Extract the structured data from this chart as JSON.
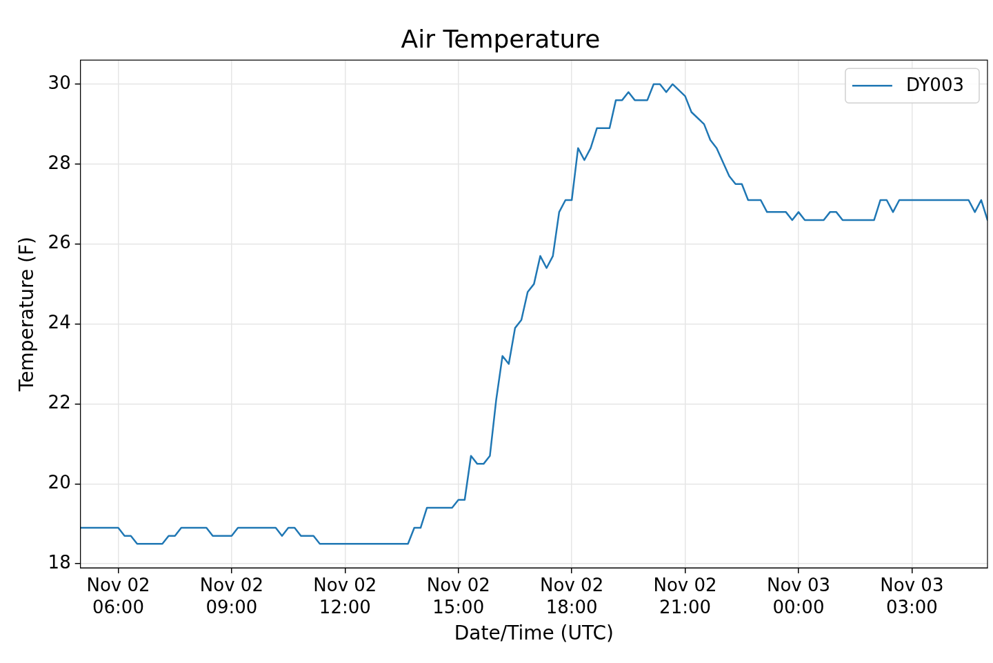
{
  "chart_data": {
    "type": "line",
    "title": "Air Temperature",
    "xlabel": "Date/Time (UTC)",
    "ylabel": "Temperature (F)",
    "xlim": [
      "--11-02T05:00",
      "--11-03T05:00"
    ],
    "ylim": [
      17.9,
      30.6
    ],
    "xticks": [
      {
        "value": "--11-02T06:00",
        "label": "Nov 02\n06:00"
      },
      {
        "value": "--11-02T09:00",
        "label": "Nov 02\n09:00"
      },
      {
        "value": "--11-02T12:00",
        "label": "Nov 02\n12:00"
      },
      {
        "value": "--11-02T15:00",
        "label": "Nov 02\n15:00"
      },
      {
        "value": "--11-02T18:00",
        "label": "Nov 02\n18:00"
      },
      {
        "value": "--11-02T21:00",
        "label": "Nov 02\n21:00"
      },
      {
        "value": "--11-03T00:00",
        "label": "Nov 03\n00:00"
      },
      {
        "value": "--11-03T03:00",
        "label": "Nov 03\n03:00"
      }
    ],
    "yticks": [
      18,
      20,
      22,
      24,
      26,
      28,
      30
    ],
    "grid": true,
    "legend": "top right",
    "marker": "none",
    "line_style": "solid",
    "x": [
      "--11-02T05:00",
      "--11-02T06:00",
      "--11-02T06:10",
      "--11-02T06:20",
      "--11-02T06:30",
      "--11-02T07:10",
      "--11-02T07:20",
      "--11-02T07:30",
      "--11-02T07:40",
      "--11-02T08:20",
      "--11-02T08:30",
      "--11-02T09:00",
      "--11-02T09:10",
      "--11-02T10:10",
      "--11-02T10:20",
      "--11-02T10:30",
      "--11-02T10:40",
      "--11-02T10:50",
      "--11-02T11:10",
      "--11-02T11:20",
      "--11-02T13:40",
      "--11-02T13:50",
      "--11-02T14:00",
      "--11-02T14:10",
      "--11-02T14:50",
      "--11-02T15:00",
      "--11-02T15:10",
      "--11-02T15:20",
      "--11-02T15:30",
      "--11-02T15:40",
      "--11-02T15:50",
      "--11-02T16:00",
      "--11-02T16:10",
      "--11-02T16:20",
      "--11-02T16:30",
      "--11-02T16:40",
      "--11-02T16:50",
      "--11-02T17:00",
      "--11-02T17:10",
      "--11-02T17:20",
      "--11-02T17:30",
      "--11-02T17:40",
      "--11-02T17:50",
      "--11-02T18:00",
      "--11-02T18:10",
      "--11-02T18:20",
      "--11-02T18:30",
      "--11-02T18:40",
      "--11-02T19:00",
      "--11-02T19:10",
      "--11-02T19:20",
      "--11-02T19:30",
      "--11-02T19:40",
      "--11-02T20:00",
      "--11-02T20:10",
      "--11-02T20:20",
      "--11-02T20:30",
      "--11-02T20:40",
      "--11-02T21:00",
      "--11-02T21:10",
      "--11-02T21:30",
      "--11-02T21:40",
      "--11-02T21:50",
      "--11-02T22:10",
      "--11-02T22:20",
      "--11-02T22:30",
      "--11-02T22:40",
      "--11-02T23:00",
      "--11-02T23:10",
      "--11-02T23:40",
      "--11-02T23:50",
      "--11-03T00:00",
      "--11-03T00:10",
      "--11-03T00:40",
      "--11-03T00:50",
      "--11-03T01:00",
      "--11-03T01:10",
      "--11-03T02:00",
      "--11-03T02:10",
      "--11-03T02:20",
      "--11-03T02:30",
      "--11-03T02:40",
      "--11-03T04:30",
      "--11-03T04:40",
      "--11-03T04:50",
      "--11-03T05:00"
    ],
    "series": [
      {
        "name": "DY003",
        "color": "#1f77b4",
        "values": [
          18.9,
          18.9,
          18.7,
          18.7,
          18.5,
          18.5,
          18.7,
          18.7,
          18.9,
          18.9,
          18.7,
          18.7,
          18.9,
          18.9,
          18.7,
          18.9,
          18.9,
          18.7,
          18.7,
          18.5,
          18.5,
          18.9,
          18.9,
          19.4,
          19.4,
          19.6,
          19.6,
          20.7,
          20.5,
          20.5,
          20.7,
          22.1,
          23.2,
          23.0,
          23.9,
          24.1,
          24.8,
          25.0,
          25.7,
          25.4,
          25.7,
          26.8,
          27.1,
          27.1,
          28.4,
          28.1,
          28.4,
          28.9,
          28.9,
          29.6,
          29.6,
          29.8,
          29.6,
          29.6,
          30.0,
          30.0,
          29.8,
          30.0,
          29.7,
          29.3,
          29.0,
          28.6,
          28.4,
          27.7,
          27.5,
          27.5,
          27.1,
          27.1,
          26.8,
          26.8,
          26.6,
          26.8,
          26.6,
          26.6,
          26.8,
          26.8,
          26.6,
          26.6,
          27.1,
          27.1,
          26.8,
          27.1,
          27.1,
          26.8,
          27.1,
          26.6
        ]
      }
    ]
  }
}
